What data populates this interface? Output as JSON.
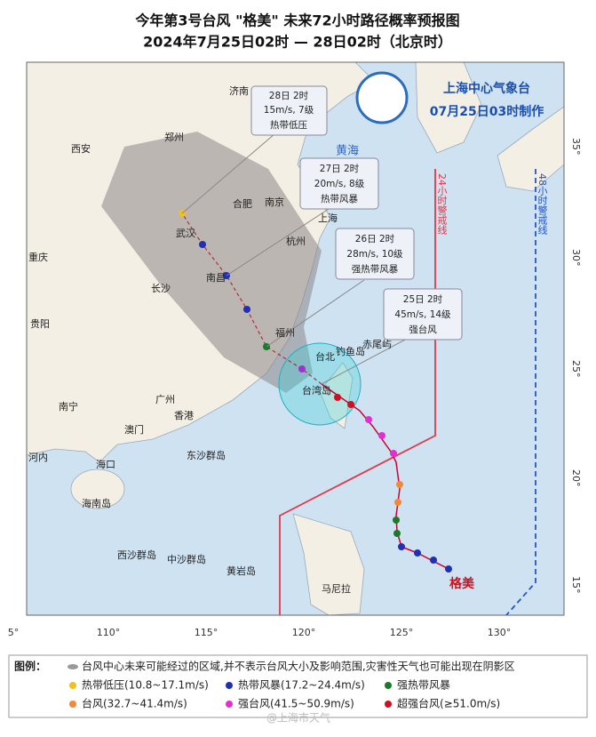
{
  "header": {
    "title": "今年第3号台风 \"格美\" 未来72小时路径概率预报图",
    "subtitle": "2024年7月25日02时 — 28日02时（北京时）"
  },
  "agency": {
    "name": "上海中心气象台",
    "issued": "07月25日03时制作"
  },
  "forecasts": [
    {
      "time": "28日 2时",
      "wind": "15m/s, 7级",
      "category": "热带低压"
    },
    {
      "time": "27日 2时",
      "wind": "20m/s, 8级",
      "category": "热带风暴"
    },
    {
      "time": "26日 2时",
      "wind": "28m/s, 10级",
      "category": "强热带风暴"
    },
    {
      "time": "25日 2时",
      "wind": "45m/s, 14级",
      "category": "强台风"
    }
  ],
  "warning_lines": [
    "24小时警戒线",
    "48小时警戒线"
  ],
  "typhoon_name": "格美",
  "sea": "黄海",
  "places": [
    "济南",
    "郑州",
    "西安",
    "合肥",
    "南京",
    "上海",
    "武汉",
    "杭州",
    "长沙",
    "南昌",
    "福州",
    "重庆",
    "贵阳",
    "南宁",
    "广州",
    "香港",
    "澳门",
    "海口",
    "海南岛",
    "台北",
    "钓鱼岛",
    "赤尾屿",
    "台湾岛",
    "东沙群岛",
    "西沙群岛",
    "中沙群岛",
    "黄岩岛",
    "马尼拉",
    "河内"
  ],
  "longitude_labels": [
    "5°",
    "110°",
    "115°",
    "120°",
    "125°",
    "130°"
  ],
  "latitude_labels": [
    "35°",
    "30°",
    "25°",
    "20°",
    "15°"
  ],
  "legend": {
    "title": "图例：",
    "cone_note": "台风中心未来可能经过的区域,并不表示台风大小及影响范围,灾害性天气也可能出现在阴影区",
    "items": [
      "热带低压(10.8~17.1m/s)",
      "热带风暴(17.2~24.4m/s)",
      "强热带风暴",
      "台风(32.7~41.4m/s)",
      "强台风(41.5~50.9m/s)",
      "超强台风(≥51.0m/s)"
    ]
  },
  "watermark": "@上海市天气"
}
